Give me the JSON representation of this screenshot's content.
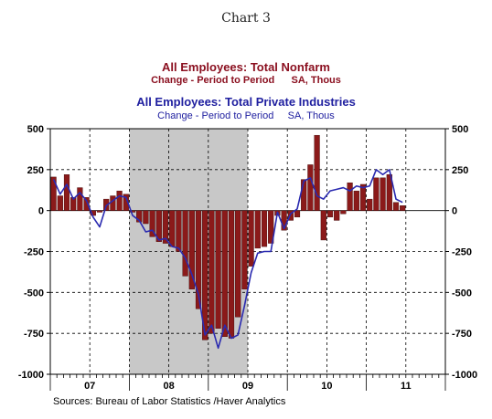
{
  "header": {
    "chart_number": "Chart 3",
    "title1": "All Employees: Total Nonfarm",
    "subtitle1": "Change - Period to Period      SA, Thous",
    "title2": "All Employees: Total Private Industries",
    "subtitle2": "Change - Period to Period     SA, Thous"
  },
  "footer": {
    "source": "Sources:  Bureau of Labor Statistics /Haver Analytics"
  },
  "colors": {
    "bars": "#8b1a1a",
    "line": "#2a2ab0",
    "shading": "#c8c8c8"
  },
  "chart_data": {
    "type": "bar",
    "start": "2007-01",
    "frequency": "monthly",
    "ylim": [
      -1000,
      500
    ],
    "yticks": [
      500,
      250,
      0,
      -250,
      -500,
      -750,
      -1000
    ],
    "ytick_labels": [
      "500",
      "250",
      "0",
      "-250",
      "-500",
      "-750",
      "-1000"
    ],
    "x_labels": [
      {
        "label": "07",
        "year": 2007
      },
      {
        "label": "08",
        "year": 2008
      },
      {
        "label": "09",
        "year": 2009
      },
      {
        "label": "10",
        "year": 2010
      },
      {
        "label": "11",
        "year": 2011
      }
    ],
    "shaded_range": [
      "2008-01",
      "2009-06"
    ],
    "legend": "none",
    "grid": "dashed vertical at year boundaries and mid-year, dashed horizontal at ticks",
    "series": [
      {
        "name": "All Employees: Total Nonfarm",
        "type": "bar",
        "values": [
          205,
          90,
          220,
          80,
          140,
          80,
          -30,
          -10,
          70,
          90,
          120,
          100,
          -10,
          -70,
          -80,
          -160,
          -190,
          -200,
          -220,
          -250,
          -400,
          -480,
          -600,
          -790,
          -750,
          -720,
          -770,
          -780,
          -650,
          -480,
          -340,
          -230,
          -220,
          -200,
          -30,
          -120,
          -60,
          -40,
          190,
          280,
          460,
          -180,
          -40,
          -60,
          -20,
          170,
          120,
          160,
          70,
          200,
          200,
          220,
          50,
          30
        ]
      },
      {
        "name": "All Employees: Total Private Industries",
        "type": "line",
        "values": [
          190,
          100,
          160,
          70,
          110,
          60,
          -40,
          -100,
          30,
          60,
          90,
          80,
          -30,
          -60,
          -130,
          -120,
          -180,
          -170,
          -220,
          -230,
          -290,
          -390,
          -510,
          -760,
          -700,
          -840,
          -700,
          -780,
          -760,
          -580,
          -380,
          -260,
          -250,
          -250,
          -10,
          -110,
          -20,
          10,
          180,
          200,
          90,
          70,
          120,
          130,
          140,
          120,
          150,
          140,
          150,
          250,
          220,
          250,
          70,
          50
        ]
      }
    ]
  }
}
